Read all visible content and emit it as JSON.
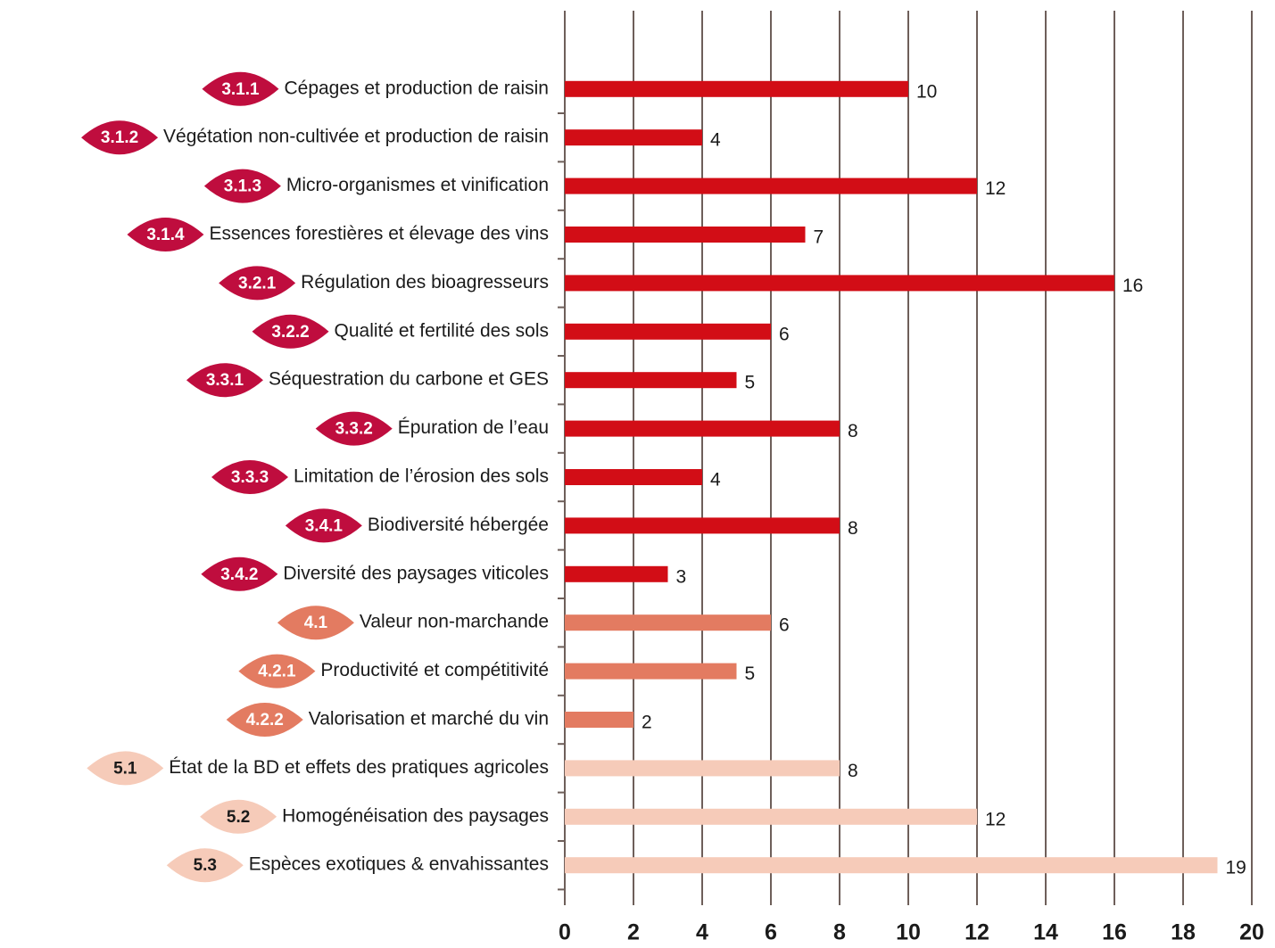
{
  "chart_data": {
    "type": "barh",
    "codes": [
      "3.1.1",
      "3.1.2",
      "3.1.3",
      "3.1.4",
      "3.2.1",
      "3.2.2",
      "3.3.1",
      "3.3.2",
      "3.3.3",
      "3.4.1",
      "3.4.2",
      "4.1",
      "4.2.1",
      "4.2.2",
      "5.1",
      "5.2",
      "5.3"
    ],
    "categories": [
      "Cépages et production de raisin",
      "Végétation non-cultivée et production de raisin",
      "Micro-organismes et vinification",
      "Essences forestières et élevage des vins",
      "Régulation des bioagresseurs",
      "Qualité et fertilité des sols",
      "Séquestration du carbone et GES",
      "Épuration de l’eau",
      "Limitation de l’érosion des sols",
      "Biodiversité hébergée",
      "Diversité des paysages viticoles",
      "Valeur non-marchande",
      "Productivité et compétitivité",
      "Valorisation et marché du vin",
      "État de la BD et effets des pratiques agricoles",
      "Homogénéisation des paysages",
      "Espèces exotiques & envahissantes"
    ],
    "values": [
      10,
      4,
      12,
      7,
      16,
      6,
      5,
      8,
      4,
      8,
      3,
      6,
      5,
      2,
      8,
      12,
      19
    ],
    "colors": [
      "#d20d16",
      "#d20d16",
      "#d20d16",
      "#d20d16",
      "#d20d16",
      "#d20d16",
      "#d20d16",
      "#d20d16",
      "#d20d16",
      "#d20d16",
      "#d20d16",
      "#e37b61",
      "#e37b61",
      "#e37b61",
      "#f6cbb9",
      "#f6cbb9",
      "#f6cbb9"
    ],
    "badge_colors": [
      "#bf0d3e",
      "#bf0d3e",
      "#bf0d3e",
      "#bf0d3e",
      "#bf0d3e",
      "#bf0d3e",
      "#bf0d3e",
      "#bf0d3e",
      "#bf0d3e",
      "#bf0d3e",
      "#bf0d3e",
      "#e37b61",
      "#e37b61",
      "#e37b61",
      "#f6cbb9",
      "#f6cbb9",
      "#f6cbb9"
    ],
    "xlim": [
      0,
      20
    ],
    "xticks": [
      0,
      2,
      4,
      6,
      8,
      10,
      12,
      14,
      16,
      18,
      20
    ],
    "grid": true
  }
}
